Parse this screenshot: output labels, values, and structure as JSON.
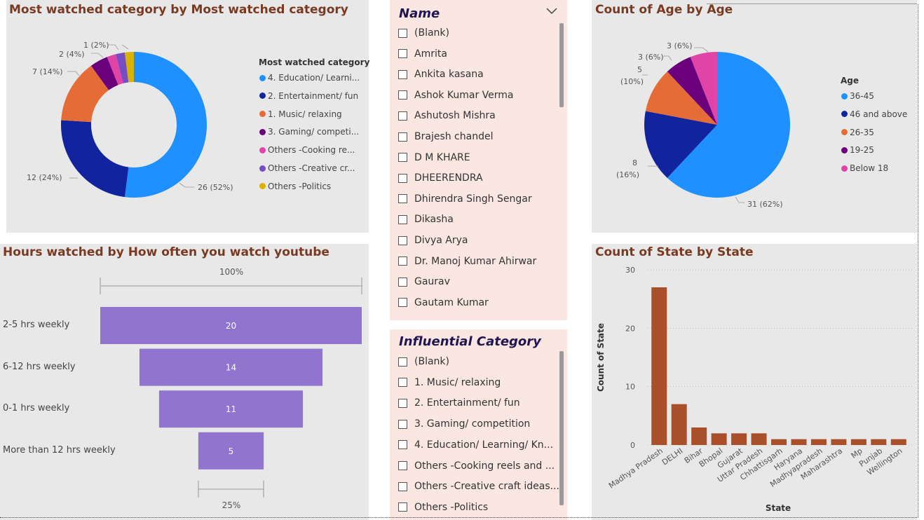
{
  "colors": {
    "panel_bg": "#e8e8e8",
    "slicer_bg": "#fbe7e1",
    "title_color": "#7a3a22",
    "funnel_bar": "#9074d0",
    "bar_color": "#a9502a"
  },
  "donut": {
    "title": "Most watched category by Most watched category",
    "legend_title": "Most watched category",
    "legend": [
      {
        "label": "4. Education/ Learni...",
        "color": "#1e90ff"
      },
      {
        "label": "2. Entertainment/ fun",
        "color": "#12239e"
      },
      {
        "label": "1. Music/ relaxing",
        "color": "#e66c37"
      },
      {
        "label": "3. Gaming/ competi...",
        "color": "#6b007b"
      },
      {
        "label": "Others -Cooking re...",
        "color": "#e044a7"
      },
      {
        "label": "Others -Creative cr...",
        "color": "#744ec2"
      },
      {
        "label": "Others -Politics",
        "color": "#d9b300"
      }
    ],
    "labels": {
      "education": "26 (52%)",
      "entertainment": "12 (24%)",
      "music": "7 (14%)",
      "gaming": "2 (4%)",
      "small": "1 (2%)"
    }
  },
  "name_slicer": {
    "title": "Name",
    "items": [
      "(Blank)",
      "Amrita",
      "Ankita kasana",
      "Ashok Kumar Verma",
      "Ashutosh Mishra",
      "Brajesh chandel",
      "D M KHARE",
      "DHEERENDRA",
      "Dhirendra Singh Sengar",
      "Dikasha",
      "Divya Arya",
      "Dr. Manoj Kumar Ahirwar",
      "Gaurav",
      "Gautam Kumar"
    ]
  },
  "influential_slicer": {
    "title": "Influential Category",
    "items": [
      "(Blank)",
      "1. Music/ relaxing",
      "2. Entertainment/ fun",
      "3. Gaming/ competition",
      "4. Education/ Learning/ Kn...",
      "Others -Cooking reels and ...",
      "Others -Creative craft ideas...",
      "Others -Politics"
    ]
  },
  "pie": {
    "title": "Count of Age by Age",
    "legend_title": "Age",
    "legend": [
      {
        "label": "36-45",
        "color": "#1e90ff"
      },
      {
        "label": "46 and above",
        "color": "#12239e"
      },
      {
        "label": "26-35",
        "color": "#e66c37"
      },
      {
        "label": "19-25",
        "color": "#6b007b"
      },
      {
        "label": "Below 18",
        "color": "#e044a7"
      }
    ],
    "labels": {
      "a3645": "31 (62%)",
      "a46": "8",
      "a46b": "(16%)",
      "a2635": "5",
      "a2635b": "(10%)",
      "a1925": "3 (6%)",
      "below18": "3 (6%)"
    }
  },
  "funnel": {
    "title": "Hours watched by How often you watch youtube",
    "top_pct": "100%",
    "bottom_pct": "25%"
  },
  "bar": {
    "title": "Count of State by State",
    "xlabel": "State",
    "ylabel": "Count of State",
    "yticks": [
      "30",
      "20",
      "10",
      "0"
    ]
  },
  "chart_data": [
    {
      "type": "pie",
      "title": "Most watched category by Most watched category",
      "categories": [
        "4. Education/ Learni...",
        "2. Entertainment/ fun",
        "1. Music/ relaxing",
        "3. Gaming/ competi...",
        "Others -Cooking re...",
        "Others -Creative cr...",
        "Others -Politics"
      ],
      "values": [
        26,
        12,
        7,
        2,
        1,
        1,
        1
      ]
    },
    {
      "type": "pie",
      "title": "Count of Age by Age",
      "categories": [
        "36-45",
        "46 and above",
        "26-35",
        "19-25",
        "Below 18"
      ],
      "values": [
        31,
        8,
        5,
        3,
        3
      ]
    },
    {
      "type": "bar",
      "title": "Hours watched by How often you watch youtube",
      "categories": [
        "2-5 hrs weekly",
        "6-12 hrs weekly",
        "0-1 hrs weekly",
        "More than 12 hrs weekly"
      ],
      "values": [
        20,
        14,
        11,
        5
      ]
    },
    {
      "type": "bar",
      "title": "Count of State by State",
      "xlabel": "State",
      "ylabel": "Count of State",
      "ylim": [
        0,
        30
      ],
      "categories": [
        "Madhya Pradesh",
        "DELHI",
        "Bihar",
        "Bhopal",
        "Gujarat",
        "Uttar Pradesh",
        "Chhattisgarh",
        "Haryana",
        "Madhyapradesh",
        "Maharashtra",
        "Mp",
        "Punjab",
        "Wellington"
      ],
      "values": [
        27,
        7,
        3,
        2,
        2,
        2,
        1,
        1,
        1,
        1,
        1,
        1,
        1
      ]
    }
  ]
}
